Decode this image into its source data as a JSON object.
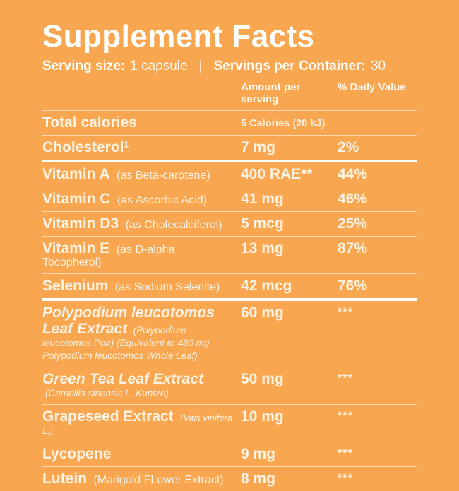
{
  "colors": {
    "background": "#F9A651",
    "title_text": "#FFFFFF",
    "body_text": "#FCF2E2",
    "divider_thin": "rgba(255,250,240,0.62)",
    "divider_thick": "#FFFEFA"
  },
  "header": {
    "title": "Supplement Facts",
    "serving_size_label": "Serving size:",
    "serving_size_value": "1 capsule",
    "divider": "|",
    "servings_per_container_label": "Servings per Container:",
    "servings_per_container_value": "30"
  },
  "columns": {
    "amount": "Amount per serving",
    "daily_value": "% Daily Value"
  },
  "rows": [
    {
      "name": "Total calories",
      "amount": "5 Calories (20 kJ)",
      "dv": ""
    },
    {
      "name": "Cholesterol",
      "sup": "1",
      "amount": "7 mg",
      "dv": "2%"
    },
    {
      "name": "Vitamin A",
      "paren": "(as Beta-carotene)",
      "amount": "400 RAE**",
      "dv": "44%"
    },
    {
      "name": "Vitamin C",
      "paren": "(as Ascorbic Acid)",
      "amount": "41 mg",
      "dv": "46%"
    },
    {
      "name": "Vitamin D3",
      "paren": "(as Cholecalciferol)",
      "amount": "5 mcg",
      "dv": "25%"
    },
    {
      "name": "Vitamin E",
      "paren": "(as D-alpha Tocopherol)",
      "amount": "13 mg",
      "dv": "87%"
    },
    {
      "name": "Selenium",
      "paren": "(as Sodium Selenite)",
      "amount": "42 mcg",
      "dv": "76%"
    },
    {
      "name": "Polypodium leucotomos Leaf Extract",
      "paren": "(Polypodium leucotomos Poir) (Equivalent to 480 mg Polypodium leucotomos Whole Leaf)",
      "amount": "60 mg",
      "dv": "***"
    },
    {
      "name": "Green Tea Leaf Extract",
      "paren": "(Camellia sinensis L. Kuntze)",
      "amount": "50 mg",
      "dv": "***"
    },
    {
      "name": "Grapeseed Extract",
      "paren": "(Vitis vinifera L.)",
      "amount": "10 mg",
      "dv": "***"
    },
    {
      "name": "Lycopene",
      "amount": "9 mg",
      "dv": "***"
    },
    {
      "name": "Lutein",
      "paren": "(Marigold FLower Extract)",
      "amount": "8 mg",
      "dv": "***"
    }
  ]
}
